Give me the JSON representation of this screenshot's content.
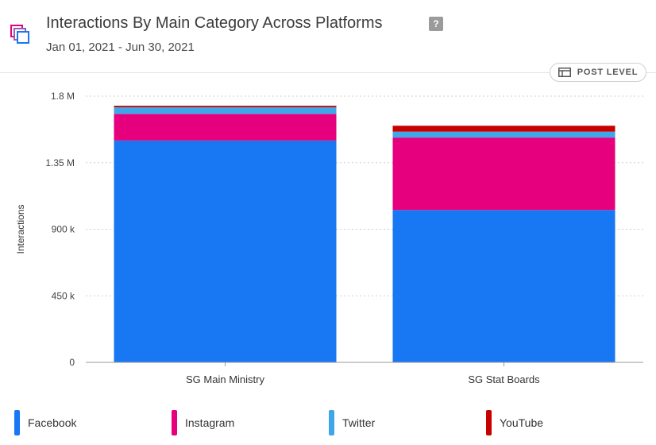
{
  "header": {
    "title": "Interactions By Main Category Across Platforms",
    "help": "?",
    "subtitle": "Jan 01, 2021 - Jun 30, 2021",
    "icon": "stacked-squares-icon"
  },
  "controls": {
    "post_level_label": "POST LEVEL",
    "post_level_icon": "table-icon"
  },
  "chart_data": {
    "type": "bar",
    "stacked": true,
    "categories": [
      "SG Main Ministry",
      "SG Stat Boards"
    ],
    "series": [
      {
        "name": "Facebook",
        "color": "#1877f2",
        "values": [
          1500000,
          1030000
        ]
      },
      {
        "name": "Instagram",
        "color": "#e6007e",
        "values": [
          180000,
          490000
        ]
      },
      {
        "name": "Twitter",
        "color": "#3fa6e8",
        "values": [
          45000,
          40000
        ]
      },
      {
        "name": "YouTube",
        "color": "#c70000",
        "values": [
          10000,
          40000
        ]
      }
    ],
    "ylabel": "Interactions",
    "ylim": [
      0,
      1800000
    ],
    "yticks": [
      0,
      450000,
      900000,
      1350000,
      1800000
    ],
    "ytick_labels": [
      "0",
      "450 k",
      "900 k",
      "1.35 M",
      "1.8 M"
    ],
    "grid": true,
    "legend_position": "bottom"
  }
}
